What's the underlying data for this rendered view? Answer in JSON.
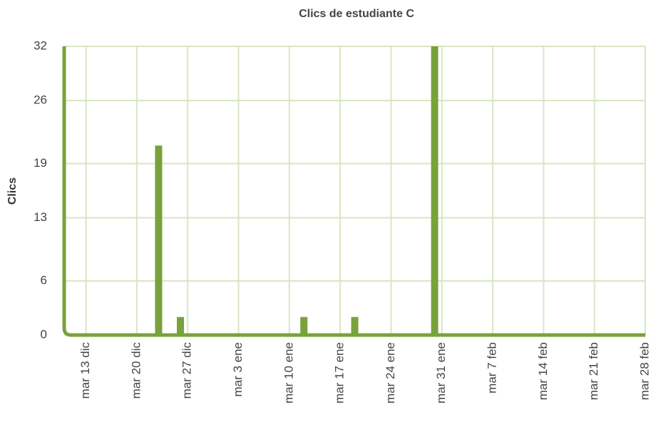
{
  "chart_data": {
    "type": "bar",
    "title": "Clics de estudiante C",
    "y_label": "Clics",
    "x": [
      "23 dic",
      "26 dic",
      "12 ene",
      "19 ene",
      "30 ene"
    ],
    "values": [
      21,
      2,
      2,
      2,
      32
    ],
    "color": "#78a23a",
    "xlim": [
      "10 dic",
      "28 feb"
    ],
    "xticks": [
      {
        "value": "13 dic",
        "label": "mar 13 dic"
      },
      {
        "value": "20 dic",
        "label": "mar 20 dic"
      },
      {
        "value": "27 dic",
        "label": "mar 27 dic"
      },
      {
        "value": "3 ene",
        "label": "mar 3 ene"
      },
      {
        "value": "10 ene",
        "label": "mar 10 ene"
      },
      {
        "value": "17 ene",
        "label": "mar 17 ene"
      },
      {
        "value": "24 ene",
        "label": "mar 24 ene"
      },
      {
        "value": "31 ene",
        "label": "mar 31 ene"
      },
      {
        "value": "7 feb",
        "label": "mar 7 feb"
      },
      {
        "value": "14 feb",
        "label": "mar 14 feb"
      },
      {
        "value": "21 feb",
        "label": "mar 21 feb"
      },
      {
        "value": "28 feb",
        "label": "mar 28 feb"
      }
    ],
    "ylim": [
      0,
      32
    ],
    "yticks": [
      0,
      6,
      13,
      19,
      26,
      32
    ],
    "grid": true
  }
}
